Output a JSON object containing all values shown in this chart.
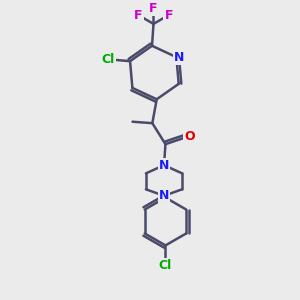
{
  "background_color": "#ebebeb",
  "bond_color": "#4a4a6a",
  "bond_width": 1.8,
  "atom_colors": {
    "N": "#1a1aff",
    "O": "#dd0000",
    "Cl": "#00aa00",
    "F": "#cc00cc"
  },
  "figsize": [
    3.0,
    3.0
  ],
  "dpi": 100
}
